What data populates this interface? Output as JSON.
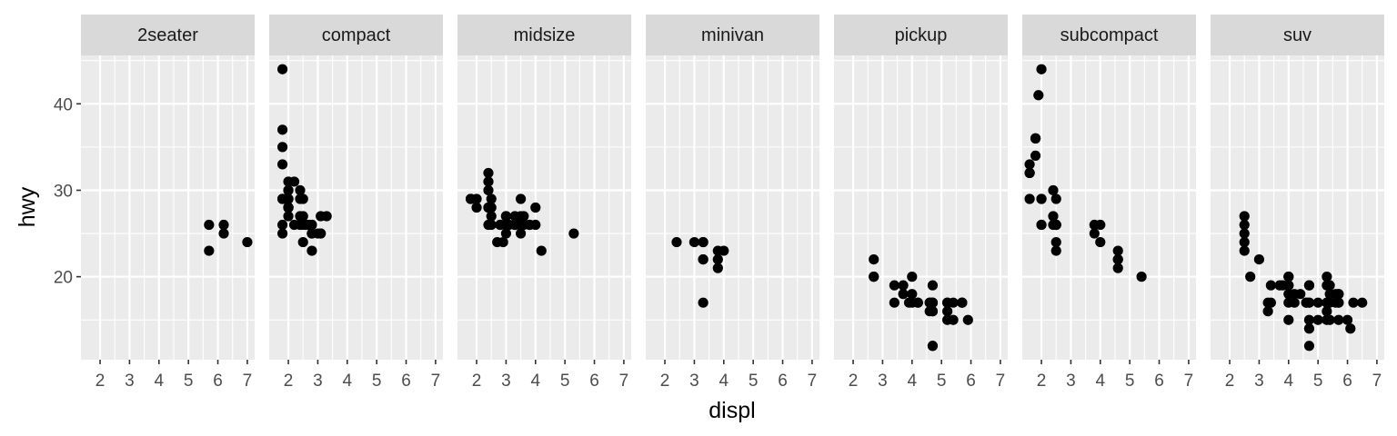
{
  "chart_data": {
    "type": "scatter",
    "title": "",
    "xlabel": "displ",
    "ylabel": "hwy",
    "xlim": [
      1.35,
      7.25
    ],
    "ylim": [
      10.4,
      45.6
    ],
    "x_ticks": [
      2,
      3,
      4,
      5,
      6,
      7
    ],
    "y_ticks": [
      20,
      30,
      40
    ],
    "grid": true,
    "legend": "none",
    "colors": {
      "panel_background": "#ebebeb",
      "strip_background": "#d9d9d9",
      "grid": "#ffffff",
      "point": "#000000"
    },
    "panels": [
      {
        "name": "2seater",
        "points": [
          [
            5.7,
            26
          ],
          [
            5.7,
            23
          ],
          [
            6.2,
            26
          ],
          [
            6.2,
            25
          ],
          [
            7.0,
            24
          ]
        ]
      },
      {
        "name": "compact",
        "points": [
          [
            1.8,
            29
          ],
          [
            1.8,
            29
          ],
          [
            2.0,
            31
          ],
          [
            2.0,
            30
          ],
          [
            2.8,
            26
          ],
          [
            2.8,
            26
          ],
          [
            3.1,
            27
          ],
          [
            1.8,
            26
          ],
          [
            1.8,
            25
          ],
          [
            2.0,
            28
          ],
          [
            2.0,
            27
          ],
          [
            2.8,
            25
          ],
          [
            2.8,
            25
          ],
          [
            3.1,
            25
          ],
          [
            3.1,
            25
          ],
          [
            2.0,
            28
          ],
          [
            2.0,
            28
          ],
          [
            2.0,
            28
          ],
          [
            2.4,
            27
          ],
          [
            2.4,
            30
          ],
          [
            2.5,
            27
          ],
          [
            2.5,
            26
          ],
          [
            2.5,
            29
          ],
          [
            2.2,
            31
          ],
          [
            1.8,
            44
          ],
          [
            1.8,
            37
          ],
          [
            1.8,
            35
          ],
          [
            1.8,
            33
          ],
          [
            2.0,
            29
          ],
          [
            2.4,
            29
          ],
          [
            2.8,
            23
          ],
          [
            2.8,
            25
          ],
          [
            3.3,
            27
          ],
          [
            2.2,
            26
          ],
          [
            2.0,
            30
          ],
          [
            2.0,
            29
          ],
          [
            2.4,
            26
          ],
          [
            2.5,
            24
          ],
          [
            2.7,
            26
          ],
          [
            1.9,
            29
          ],
          [
            2.0,
            28
          ],
          [
            3.0,
            25
          ],
          [
            2.6,
            26
          ]
        ]
      },
      {
        "name": "midsize",
        "points": [
          [
            2.4,
            31
          ],
          [
            2.4,
            30
          ],
          [
            3.1,
            26
          ],
          [
            3.5,
            29
          ],
          [
            3.6,
            26
          ],
          [
            2.4,
            32
          ],
          [
            3.0,
            26
          ],
          [
            3.3,
            26
          ],
          [
            3.3,
            27
          ],
          [
            2.4,
            26
          ],
          [
            2.5,
            26
          ],
          [
            2.5,
            29
          ],
          [
            3.5,
            27
          ],
          [
            3.5,
            26
          ],
          [
            3.5,
            25
          ],
          [
            3.0,
            25
          ],
          [
            3.0,
            27
          ],
          [
            3.5,
            26
          ],
          [
            3.3,
            26
          ],
          [
            1.8,
            29
          ],
          [
            1.8,
            29
          ],
          [
            2.0,
            28
          ],
          [
            2.0,
            29
          ],
          [
            2.8,
            26
          ],
          [
            2.8,
            26
          ],
          [
            2.4,
            28
          ],
          [
            2.4,
            28
          ],
          [
            3.0,
            27
          ],
          [
            3.3,
            26
          ],
          [
            2.5,
            28
          ],
          [
            2.5,
            27
          ],
          [
            3.8,
            26
          ],
          [
            3.8,
            26
          ],
          [
            4.0,
            26
          ],
          [
            4.0,
            28
          ],
          [
            2.9,
            24
          ],
          [
            3.6,
            27
          ],
          [
            4.2,
            23
          ],
          [
            5.3,
            25
          ],
          [
            2.7,
            24
          ]
        ]
      },
      {
        "name": "minivan",
        "points": [
          [
            2.4,
            24
          ],
          [
            3.0,
            24
          ],
          [
            3.3,
            22
          ],
          [
            3.3,
            22
          ],
          [
            3.3,
            24
          ],
          [
            3.3,
            24
          ],
          [
            3.3,
            17
          ],
          [
            3.8,
            22
          ],
          [
            3.8,
            21
          ],
          [
            3.8,
            23
          ],
          [
            4.0,
            23
          ]
        ]
      },
      {
        "name": "pickup",
        "points": [
          [
            2.7,
            20
          ],
          [
            2.7,
            20
          ],
          [
            2.7,
            22
          ],
          [
            3.4,
            19
          ],
          [
            3.4,
            17
          ],
          [
            4.0,
            20
          ],
          [
            4.0,
            17
          ],
          [
            4.7,
            17
          ],
          [
            4.7,
            12
          ],
          [
            4.7,
            12
          ],
          [
            5.7,
            17
          ],
          [
            5.2,
            16
          ],
          [
            5.2,
            17
          ],
          [
            3.9,
            17
          ],
          [
            4.7,
            17
          ],
          [
            4.7,
            19
          ],
          [
            4.7,
            16
          ],
          [
            5.2,
            15
          ],
          [
            5.7,
            17
          ],
          [
            5.9,
            15
          ],
          [
            4.2,
            17
          ],
          [
            4.2,
            17
          ],
          [
            4.6,
            17
          ],
          [
            4.6,
            16
          ],
          [
            4.6,
            17
          ],
          [
            5.4,
            15
          ],
          [
            5.4,
            17
          ],
          [
            4.0,
            18
          ],
          [
            3.7,
            19
          ],
          [
            3.7,
            18
          ],
          [
            4.7,
            17
          ],
          [
            4.7,
            16
          ],
          [
            5.2,
            17
          ],
          [
            5.7,
            17
          ]
        ]
      },
      {
        "name": "subcompact",
        "points": [
          [
            3.8,
            26
          ],
          [
            3.8,
            25
          ],
          [
            4.0,
            26
          ],
          [
            4.0,
            24
          ],
          [
            4.6,
            21
          ],
          [
            4.6,
            22
          ],
          [
            4.6,
            23
          ],
          [
            4.6,
            22
          ],
          [
            5.4,
            20
          ],
          [
            1.6,
            33
          ],
          [
            1.6,
            32
          ],
          [
            1.6,
            32
          ],
          [
            1.6,
            29
          ],
          [
            1.6,
            32
          ],
          [
            1.8,
            34
          ],
          [
            1.8,
            36
          ],
          [
            1.8,
            36
          ],
          [
            2.0,
            29
          ],
          [
            2.4,
            26
          ],
          [
            2.4,
            27
          ],
          [
            2.4,
            30
          ],
          [
            2.5,
            26
          ],
          [
            2.5,
            29
          ],
          [
            2.5,
            26
          ],
          [
            2.0,
            44
          ],
          [
            1.9,
            41
          ],
          [
            2.0,
            29
          ],
          [
            2.0,
            26
          ],
          [
            2.5,
            26
          ],
          [
            2.5,
            23
          ],
          [
            2.0,
            26
          ],
          [
            2.5,
            24
          ],
          [
            1.8,
            36
          ]
        ]
      },
      {
        "name": "suv",
        "points": [
          [
            5.7,
            18
          ],
          [
            5.7,
            18
          ],
          [
            6.2,
            17
          ],
          [
            4.7,
            19
          ],
          [
            5.3,
            15
          ],
          [
            6.5,
            17
          ],
          [
            5.3,
            20
          ],
          [
            5.3,
            17
          ],
          [
            5.7,
            17
          ],
          [
            6.0,
            15
          ],
          [
            5.3,
            17
          ],
          [
            4.7,
            14
          ],
          [
            5.4,
            15
          ],
          [
            5.4,
            18
          ],
          [
            4.0,
            20
          ],
          [
            4.0,
            19
          ],
          [
            4.0,
            17
          ],
          [
            4.0,
            20
          ],
          [
            4.6,
            17
          ],
          [
            5.0,
            17
          ],
          [
            4.2,
            17
          ],
          [
            4.7,
            15
          ],
          [
            4.7,
            12
          ],
          [
            4.7,
            17
          ],
          [
            5.7,
            17
          ],
          [
            6.1,
            14
          ],
          [
            4.0,
            19
          ],
          [
            4.2,
            18
          ],
          [
            4.4,
            18
          ],
          [
            4.6,
            17
          ],
          [
            5.4,
            17
          ],
          [
            5.4,
            19
          ],
          [
            4.0,
            15
          ],
          [
            4.7,
            17
          ],
          [
            5.3,
            19
          ],
          [
            2.5,
            25
          ],
          [
            2.5,
            24
          ],
          [
            2.5,
            27
          ],
          [
            2.5,
            26
          ],
          [
            2.5,
            23
          ],
          [
            2.7,
            20
          ],
          [
            3.0,
            22
          ],
          [
            3.4,
            17
          ],
          [
            3.4,
            19
          ],
          [
            3.7,
            19
          ],
          [
            3.8,
            19
          ],
          [
            3.3,
            17
          ],
          [
            3.3,
            16
          ],
          [
            4.0,
            18
          ],
          [
            4.7,
            19
          ],
          [
            5.7,
            15
          ],
          [
            5.6,
            18
          ],
          [
            5.6,
            17
          ],
          [
            5.3,
            16
          ],
          [
            5.0,
            15
          ]
        ]
      }
    ]
  }
}
